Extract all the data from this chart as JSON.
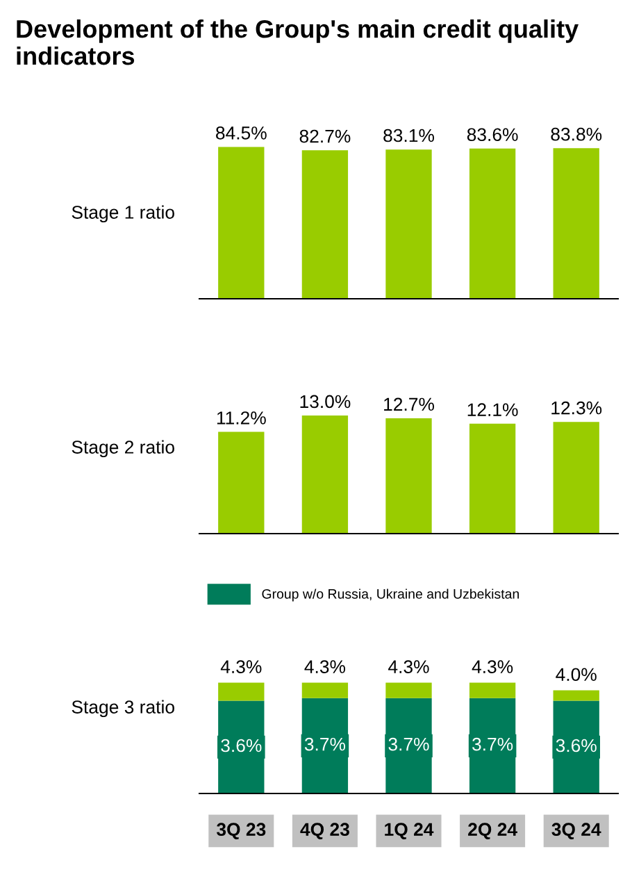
{
  "chart_data": [
    {
      "type": "bar",
      "title": "Development of the Group's main credit quality indicators",
      "ylabel": "Stage 1 ratio",
      "categories": [
        null,
        null,
        null,
        null,
        null
      ],
      "values": [
        84.5,
        82.7,
        83.1,
        83.6,
        83.8
      ],
      "value_labels": [
        "84.5%",
        "82.7%",
        "83.1%",
        "83.6%",
        "83.8%"
      ],
      "color": "#99cc00",
      "tick_labels": false
    },
    {
      "type": "bar",
      "ylabel": "Stage 2 ratio",
      "categories": [
        null,
        null,
        null,
        null,
        null
      ],
      "values": [
        11.2,
        13.0,
        12.7,
        12.1,
        12.3
      ],
      "value_labels": [
        "11.2%",
        "13.0%",
        "12.7%",
        "12.1%",
        "12.3%"
      ],
      "color": "#99cc00",
      "tick_labels": false
    },
    {
      "type": "bar",
      "ylabel": "Stage 3 ratio",
      "categories": [
        "3Q 23",
        "4Q 23",
        "1Q 24",
        "2Q 24",
        "3Q 24"
      ],
      "stacked": true,
      "tick_labels": "x",
      "legend": "top",
      "series": [
        {
          "name": "Group w/o Russia, Ukraine and Uzbekistan",
          "color": "#007c5a",
          "values": [
            3.6,
            3.7,
            3.7,
            3.7,
            3.6
          ],
          "value_labels": [
            "3.6%",
            "3.7%",
            "3.7%",
            "3.7%",
            "3.6%"
          ]
        },
        {
          "color": "#99cc00",
          "values": [
            0.7,
            0.6,
            0.6,
            0.6,
            0.4
          ]
        }
      ],
      "totals": [
        "4.3%",
        "4.3%",
        "4.3%",
        "4.3%",
        "4.0%"
      ]
    }
  ]
}
